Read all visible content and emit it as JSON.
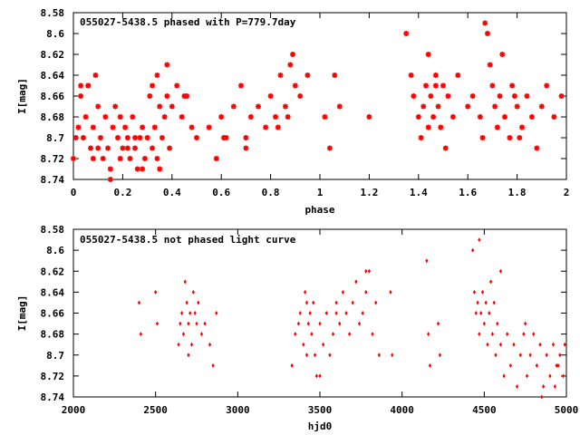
{
  "chart_data": [
    {
      "type": "scatter",
      "title": "055027-5438.5 phased with P=779.7day",
      "xlabel": "phase",
      "ylabel": "I[mag]",
      "xlim": [
        0,
        2
      ],
      "ylim": [
        8.58,
        8.74
      ],
      "y_inverted": true,
      "xticks": [
        0,
        0.2,
        0.4,
        0.6,
        0.8,
        1,
        1.2,
        1.4,
        1.6,
        1.8,
        2
      ],
      "xtick_labels": [
        "0",
        "0.2",
        "0.4",
        "0.6",
        "0.8",
        "1",
        "1.2",
        "1.4",
        "1.6",
        "1.8",
        "2"
      ],
      "yticks": [
        8.58,
        8.6,
        8.62,
        8.64,
        8.66,
        8.68,
        8.7,
        8.72,
        8.74
      ],
      "ytick_labels": [
        "8.58",
        "8.6",
        "8.62",
        "8.64",
        "8.66",
        "8.68",
        "8.7",
        "8.72",
        "8.74"
      ],
      "marker": "star",
      "color": "#ff0000",
      "x": [
        0.0,
        0.02,
        0.03,
        0.04,
        0.05,
        0.06,
        0.07,
        0.08,
        0.09,
        0.1,
        0.11,
        0.12,
        0.13,
        0.14,
        0.15,
        0.16,
        0.17,
        0.18,
        0.19,
        0.2,
        0.21,
        0.22,
        0.23,
        0.24,
        0.25,
        0.26,
        0.27,
        0.28,
        0.29,
        0.3,
        0.31,
        0.32,
        0.33,
        0.34,
        0.35,
        0.36,
        0.37,
        0.38,
        0.39,
        0.4,
        0.42,
        0.44,
        0.46,
        0.48,
        0.5,
        0.55,
        0.58,
        0.6,
        0.62,
        0.65,
        0.68,
        0.7,
        0.72,
        0.75,
        0.78,
        0.8,
        0.82,
        0.84,
        0.86,
        0.88,
        0.89,
        0.9,
        0.92,
        0.95,
        1.02,
        1.04,
        1.06,
        1.08,
        1.2,
        1.35,
        1.37,
        1.38,
        1.4,
        1.41,
        1.42,
        1.43,
        1.44,
        1.45,
        1.46,
        1.47,
        1.48,
        1.49,
        1.5,
        1.52,
        1.54,
        1.56,
        1.6,
        1.62,
        1.65,
        1.67,
        1.68,
        1.69,
        1.7,
        1.71,
        1.72,
        1.73,
        1.75,
        1.77,
        1.78,
        1.8,
        1.82,
        1.84,
        1.86,
        1.88,
        1.9,
        1.92,
        1.95,
        1.98,
        0.01,
        0.1,
        0.15,
        0.25,
        0.32,
        0.35,
        0.06,
        0.19,
        0.28,
        0.34,
        0.83,
        1.44,
        1.51,
        1.74,
        1.81,
        0.03,
        0.08,
        0.22,
        0.38,
        0.45,
        0.61,
        0.7,
        0.87,
        1.47,
        1.66,
        1.79
      ],
      "y": [
        8.72,
        8.69,
        8.66,
        8.7,
        8.68,
        8.65,
        8.71,
        8.69,
        8.64,
        8.67,
        8.7,
        8.72,
        8.68,
        8.71,
        8.73,
        8.69,
        8.67,
        8.7,
        8.68,
        8.71,
        8.69,
        8.7,
        8.72,
        8.68,
        8.71,
        8.73,
        8.7,
        8.69,
        8.72,
        8.7,
        8.66,
        8.71,
        8.69,
        8.72,
        8.67,
        8.7,
        8.68,
        8.66,
        8.71,
        8.67,
        8.65,
        8.68,
        8.66,
        8.69,
        8.7,
        8.69,
        8.72,
        8.68,
        8.7,
        8.67,
        8.65,
        8.7,
        8.68,
        8.67,
        8.69,
        8.66,
        8.68,
        8.64,
        8.67,
        8.63,
        8.62,
        8.65,
        8.66,
        8.64,
        8.68,
        8.71,
        8.64,
        8.67,
        8.68,
        8.6,
        8.64,
        8.66,
        8.68,
        8.7,
        8.67,
        8.65,
        8.69,
        8.66,
        8.68,
        8.64,
        8.67,
        8.69,
        8.65,
        8.66,
        8.68,
        8.64,
        8.67,
        8.66,
        8.68,
        8.59,
        8.6,
        8.63,
        8.65,
        8.67,
        8.69,
        8.66,
        8.68,
        8.7,
        8.65,
        8.67,
        8.69,
        8.66,
        8.68,
        8.71,
        8.67,
        8.65,
        8.68,
        8.66,
        8.7,
        8.71,
        8.74,
        8.7,
        8.65,
        8.73,
        8.65,
        8.72,
        8.73,
        8.64,
        8.69,
        8.62,
        8.71,
        8.62,
        8.7,
        8.65,
        8.72,
        8.71,
        8.63,
        8.66,
        8.7,
        8.71,
        8.68,
        8.65,
        8.7,
        8.66
      ],
      "grid": false
    },
    {
      "type": "scatter",
      "title": "055027-5438.5 not phased light curve",
      "xlabel": "hjd0",
      "ylabel": "I[mag]",
      "xlim": [
        2000,
        5000
      ],
      "ylim": [
        8.58,
        8.74
      ],
      "y_inverted": true,
      "xticks": [
        2000,
        2500,
        3000,
        3500,
        4000,
        4500,
        5000
      ],
      "xtick_labels": [
        "2000",
        "2500",
        "3000",
        "3500",
        "4000",
        "4500",
        "5000"
      ],
      "yticks": [
        8.58,
        8.6,
        8.62,
        8.64,
        8.66,
        8.68,
        8.7,
        8.72,
        8.74
      ],
      "ytick_labels": [
        "8.58",
        "8.6",
        "8.62",
        "8.64",
        "8.66",
        "8.68",
        "8.7",
        "8.72",
        "8.74"
      ],
      "marker": "dot",
      "color": "#ff0000",
      "x": [
        2400,
        2410,
        2500,
        2510,
        2640,
        2650,
        2660,
        2670,
        2680,
        2690,
        2700,
        2710,
        2720,
        2730,
        2740,
        2750,
        2760,
        2780,
        2800,
        2830,
        2850,
        2870,
        3330,
        3350,
        3370,
        3400,
        3410,
        3420,
        3430,
        3440,
        3450,
        3460,
        3470,
        3480,
        3500,
        3520,
        3540,
        3560,
        3580,
        3600,
        3620,
        3640,
        3660,
        3680,
        3700,
        3720,
        3740,
        3760,
        3780,
        3800,
        3820,
        3840,
        3860,
        3930,
        3940,
        4150,
        4160,
        4170,
        4220,
        4230,
        4430,
        4440,
        4450,
        4460,
        4470,
        4480,
        4490,
        4500,
        4510,
        4520,
        4530,
        4540,
        4550,
        4560,
        4570,
        4580,
        4600,
        4620,
        4640,
        4660,
        4680,
        4700,
        4720,
        4740,
        4760,
        4780,
        4800,
        4820,
        4840,
        4860,
        4880,
        4900,
        4920,
        4940,
        4960,
        4980,
        4990,
        3420,
        3600,
        3780,
        2700,
        4470,
        4850,
        4930,
        3380,
        3500,
        4600,
        4750,
        4950
      ],
      "y": [
        8.65,
        8.68,
        8.64,
        8.67,
        8.69,
        8.67,
        8.66,
        8.68,
        8.63,
        8.65,
        8.67,
        8.66,
        8.69,
        8.64,
        8.66,
        8.67,
        8.65,
        8.68,
        8.67,
        8.69,
        8.71,
        8.66,
        8.71,
        8.68,
        8.67,
        8.69,
        8.64,
        8.7,
        8.67,
        8.66,
        8.68,
        8.65,
        8.7,
        8.72,
        8.67,
        8.69,
        8.66,
        8.7,
        8.68,
        8.65,
        8.67,
        8.64,
        8.66,
        8.68,
        8.65,
        8.63,
        8.67,
        8.66,
        8.64,
        8.62,
        8.68,
        8.65,
        8.7,
        8.64,
        8.7,
        8.61,
        8.68,
        8.71,
        8.67,
        8.7,
        8.6,
        8.64,
        8.66,
        8.65,
        8.68,
        8.66,
        8.64,
        8.67,
        8.65,
        8.69,
        8.66,
        8.63,
        8.68,
        8.65,
        8.7,
        8.67,
        8.69,
        8.72,
        8.68,
        8.71,
        8.69,
        8.73,
        8.7,
        8.68,
        8.72,
        8.7,
        8.68,
        8.71,
        8.69,
        8.73,
        8.7,
        8.72,
        8.69,
        8.71,
        8.7,
        8.72,
        8.69,
        8.65,
        8.66,
        8.62,
        8.7,
        8.59,
        8.74,
        8.73,
        8.66,
        8.72,
        8.62,
        8.67,
        8.71
      ],
      "grid": false
    }
  ]
}
